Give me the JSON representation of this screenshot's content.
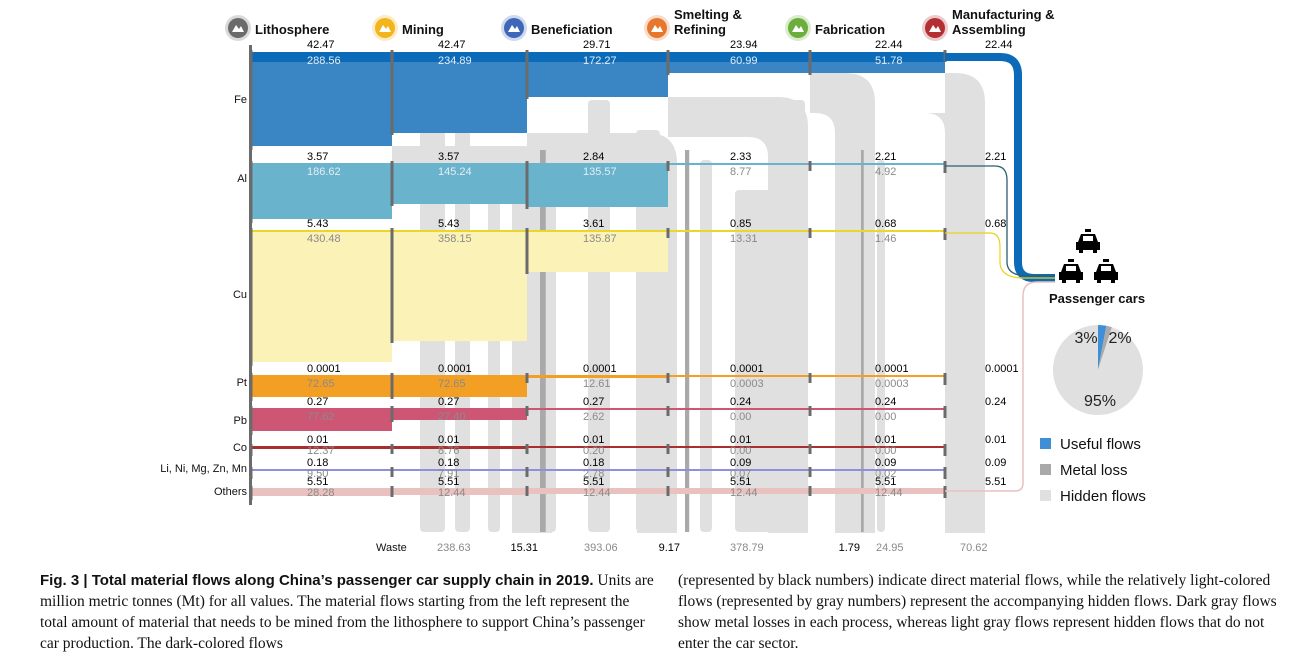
{
  "chart_data": {
    "type": "sankey",
    "title": "Total material flows along China's passenger car supply chain in 2019",
    "units": "Mt",
    "stages": [
      {
        "name": "Lithosphere",
        "icon": "mountain-icon",
        "color": "#6b6b6b"
      },
      {
        "name": "Mining",
        "icon": "pickaxe-icon",
        "color": "#f2b51c"
      },
      {
        "name": "Beneficiation",
        "icon": "mine-cart-icon",
        "color": "#3f66b8"
      },
      {
        "name": "Smelting & Refining",
        "icon": "factory-icon",
        "color": "#e8772e"
      },
      {
        "name": "Fabrication",
        "icon": "gears-icon",
        "color": "#6cae3b"
      },
      {
        "name": "Manufacturing & Assembling",
        "icon": "tools-icon",
        "color": "#b42f33"
      }
    ],
    "elements": [
      {
        "name": "Fe",
        "color": "#3a86c5",
        "direct": [
          "42.47",
          "42.47",
          "29.71",
          "23.94",
          "22.44",
          "22.44"
        ],
        "hidden": [
          "288.56",
          "234.89",
          "172.27",
          "60.99",
          "51.78"
        ]
      },
      {
        "name": "Al",
        "color": "#69b3cd",
        "direct": [
          "3.57",
          "3.57",
          "2.84",
          "2.33",
          "2.21",
          "2.21"
        ],
        "hidden": [
          "186.62",
          "145.24",
          "135.57",
          "8.77",
          "4.92"
        ]
      },
      {
        "name": "Cu",
        "color": "#fbf2b8",
        "direct": [
          "5.43",
          "5.43",
          "3.61",
          "0.85",
          "0.68",
          "0.68"
        ],
        "hidden": [
          "430.48",
          "358.15",
          "135.87",
          "13.31",
          "1.46"
        ]
      },
      {
        "name": "Pt",
        "color": "#f39f24",
        "direct": [
          "0.0001",
          "0.0001",
          "0.0001",
          "0.0001",
          "0.0001",
          "0.0001"
        ],
        "hidden": [
          "72.65",
          "72.65",
          "12.61",
          "0.0003",
          "0.0003"
        ]
      },
      {
        "name": "Pb",
        "color": "#cc5674",
        "direct": [
          "0.27",
          "0.27",
          "0.27",
          "0.24",
          "0.24",
          "0.24"
        ],
        "hidden": [
          "77.62",
          "27.40",
          "2.62",
          "0.00",
          "0.00"
        ]
      },
      {
        "name": "Co",
        "color": "#a8302f",
        "direct": [
          "0.01",
          "0.01",
          "0.01",
          "0.01",
          "0.01",
          "0.01"
        ],
        "hidden": [
          "12.37",
          "8.76",
          "0.20",
          "0.00",
          "0.00"
        ]
      },
      {
        "name": "Li, Ni, Mg, Zn, Mn",
        "color": "#8f8fe0",
        "direct": [
          "0.18",
          "0.18",
          "0.18",
          "0.09",
          "0.09",
          "0.09"
        ],
        "hidden": [
          "9.50",
          "7.91",
          "2.78",
          "0.07",
          "0.02"
        ]
      },
      {
        "name": "Others",
        "color": "#e9c1bf",
        "direct": [
          "5.51",
          "5.51",
          "5.51",
          "5.51",
          "5.51",
          "5.51"
        ],
        "hidden": [
          "28.28",
          "12.44",
          "12.44",
          "12.44",
          "12.44"
        ]
      }
    ],
    "waste": {
      "label": "Waste",
      "metal_loss": [
        "15.31",
        "9.17",
        "1.79"
      ],
      "hidden": [
        "238.63",
        "393.06",
        "378.79",
        "24.95",
        "70.62"
      ]
    },
    "destination": "Passenger cars",
    "pie": {
      "slices": [
        {
          "name": "Useful flows",
          "value": 3,
          "label": "3%",
          "color": "#3f8fd6"
        },
        {
          "name": "Metal loss",
          "value": 2,
          "label": "2%",
          "color": "#a9a9a9"
        },
        {
          "name": "Hidden flows",
          "value": 95,
          "label": "95%",
          "color": "#e0e0e0"
        }
      ]
    },
    "legend": [
      {
        "label": "Useful flows",
        "color": "#3f8fd6"
      },
      {
        "label": "Metal loss",
        "color": "#a9a9a9"
      },
      {
        "label": "Hidden flows",
        "color": "#e0e0e0"
      }
    ]
  },
  "caption": {
    "title": "Fig. 3 | Total material flows along China’s passenger car supply chain in 2019.",
    "left_body": "Units are million metric tonnes (Mt) for all values. The material flows starting from the left represent the total amount of material that needs to be mined from the lithosphere to support China’s passenger car production. The dark-colored flows",
    "right_body": "(represented by black numbers) indicate direct material flows, while the relatively light-colored flows (represented by gray numbers) represent the accompanying hidden flows. Dark gray flows show metal losses in each process, whereas light gray flows represent hidden flows that do not enter the car sector."
  }
}
